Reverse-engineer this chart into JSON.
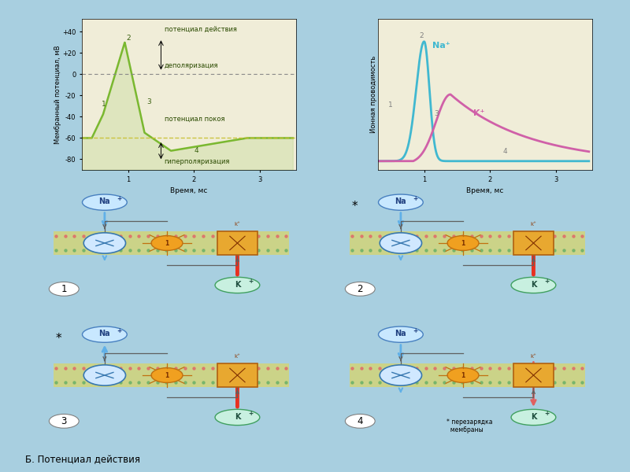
{
  "bg_color": "#a8cfe0",
  "panel_bg": "#f0edd8",
  "white_panel_bg": "#f8f5e8",
  "title_text": "Б. Потенциал действия",
  "graph1": {
    "ylabel": "Мембранный потенциал, мВ",
    "xlabel": "Время, мс",
    "yticks": [
      -80,
      -60,
      -40,
      -20,
      0,
      20,
      40
    ],
    "ytick_labels": [
      "-80",
      "-60",
      "-40",
      "-20",
      "0",
      "+20",
      "+40"
    ],
    "xticks": [
      1,
      2,
      3
    ],
    "rest_potential": -60,
    "zero_line": 0,
    "label_action": "потенциал действия",
    "label_depol": "деполяризация",
    "label_rest": "потенциал покоя",
    "label_hyper": "гиперполяризация",
    "curve_color": "#7ab830",
    "point_labels": [
      "1",
      "2",
      "3",
      "4"
    ]
  },
  "graph2": {
    "ylabel": "Ионная проводимость",
    "xlabel": "Время, мс",
    "xticks": [
      1,
      2,
      3
    ],
    "na_color": "#40b8d0",
    "k_color": "#d060a8",
    "na_label": "Na⁺",
    "k_label": "K⁺",
    "point_labels": [
      "1",
      "2",
      "3",
      "4"
    ]
  },
  "diagrams": {
    "na_label": "Na⁺",
    "k_label": "K⁺",
    "labels": [
      "1",
      "2",
      "3",
      "4"
    ],
    "star_label": "* перезарядка\n  мембраны"
  },
  "mem_yellow": "#e8d840",
  "mem_dot_top": "#e06868",
  "mem_dot_bot": "#68b068",
  "na_channel_fill": "#d0e8ff",
  "na_channel_edge": "#3878b0",
  "k_channel_fill": "#e8a830",
  "k_channel_edge": "#b06010",
  "sensor_fill": "#f0a020",
  "sensor_edge": "#c07010",
  "na_ion_fill": "#c8e8ff",
  "na_ion_edge": "#4880c0",
  "k_ion_fill": "#c8f0e0",
  "k_ion_edge": "#40a060",
  "arrow_na": "#60b0e8",
  "arrow_k_up": "#e83020",
  "arrow_k_dn": "#e06060",
  "arrow_sensor": "#606060"
}
